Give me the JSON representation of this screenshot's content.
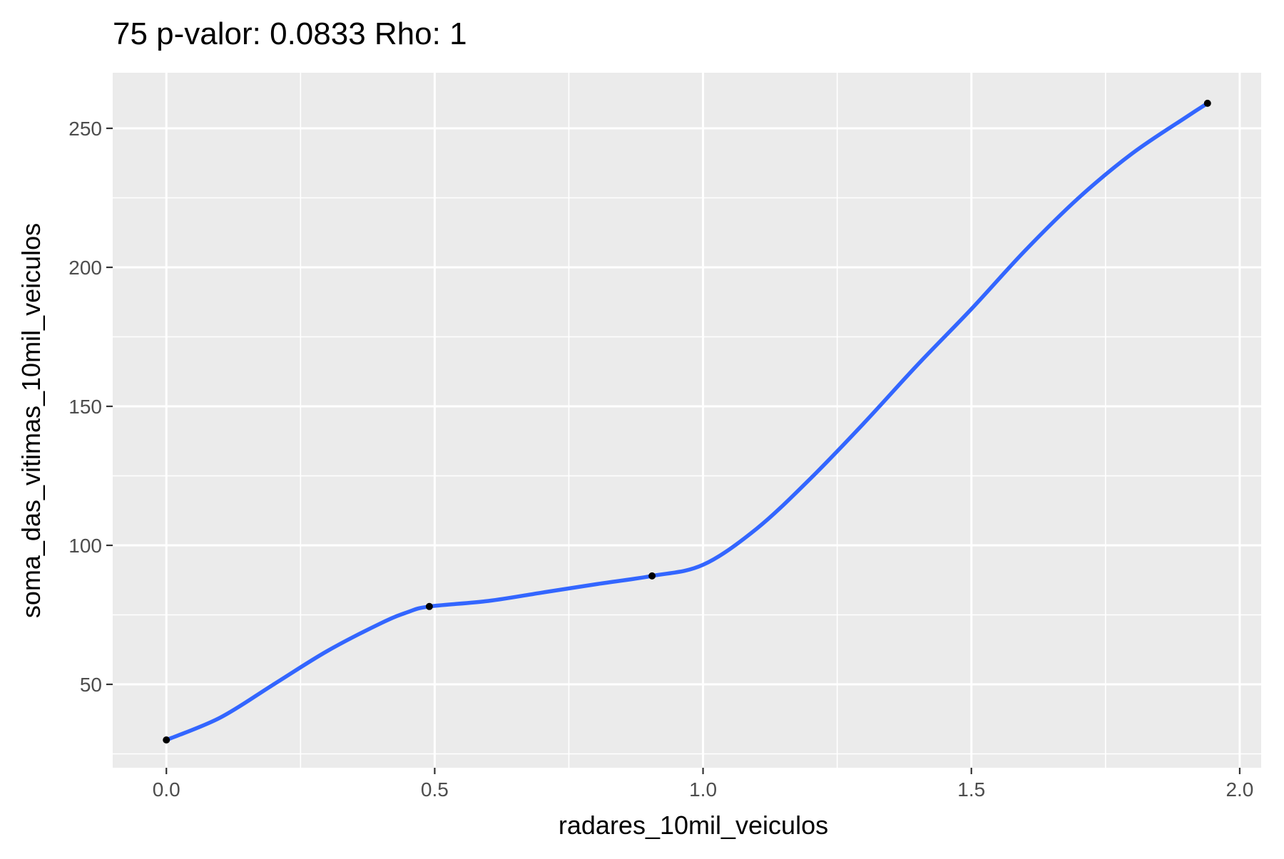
{
  "chart_data": {
    "type": "line",
    "title": "75 p-valor: 0.0833 Rho: 1",
    "xlabel": "radares_10mil_veiculos",
    "ylabel": "soma_das_vitimas_10mil_veiculos",
    "xlim": [
      -0.1,
      2.04
    ],
    "ylim": [
      20,
      270
    ],
    "x_ticks": [
      0.0,
      0.5,
      1.0,
      1.5,
      2.0
    ],
    "x_tick_labels": [
      "0.0",
      "0.5",
      "1.0",
      "1.5",
      "2.0"
    ],
    "x_minor_ticks": [
      0.25,
      0.75,
      1.25,
      1.75
    ],
    "y_ticks": [
      50,
      100,
      150,
      200,
      250
    ],
    "y_tick_labels": [
      "50",
      "100",
      "150",
      "200",
      "250"
    ],
    "y_minor_ticks": [
      25,
      75,
      125,
      175,
      225
    ],
    "grid": true,
    "legend": "none",
    "colors": {
      "panel_background": "#ebebeb",
      "grid": "#ffffff",
      "line": "#3366ff",
      "point": "#000000",
      "tick_label": "#4d4d4d",
      "tick_mark": "#333333"
    },
    "points": {
      "x": [
        0.0,
        0.49,
        0.905,
        1.94
      ],
      "y": [
        30,
        78,
        89,
        259
      ]
    },
    "smooth_curve": {
      "x": [
        0.0,
        0.1,
        0.2,
        0.3,
        0.4,
        0.45,
        0.49,
        0.6,
        0.7,
        0.8,
        0.905,
        1.0,
        1.1,
        1.2,
        1.3,
        1.4,
        1.5,
        1.6,
        1.7,
        1.8,
        1.9,
        1.94
      ],
      "y": [
        30,
        38,
        50,
        62,
        72,
        76,
        78,
        80,
        83,
        86,
        89,
        93,
        106,
        124,
        144,
        165,
        185,
        206,
        225,
        241,
        254,
        259
      ]
    }
  }
}
